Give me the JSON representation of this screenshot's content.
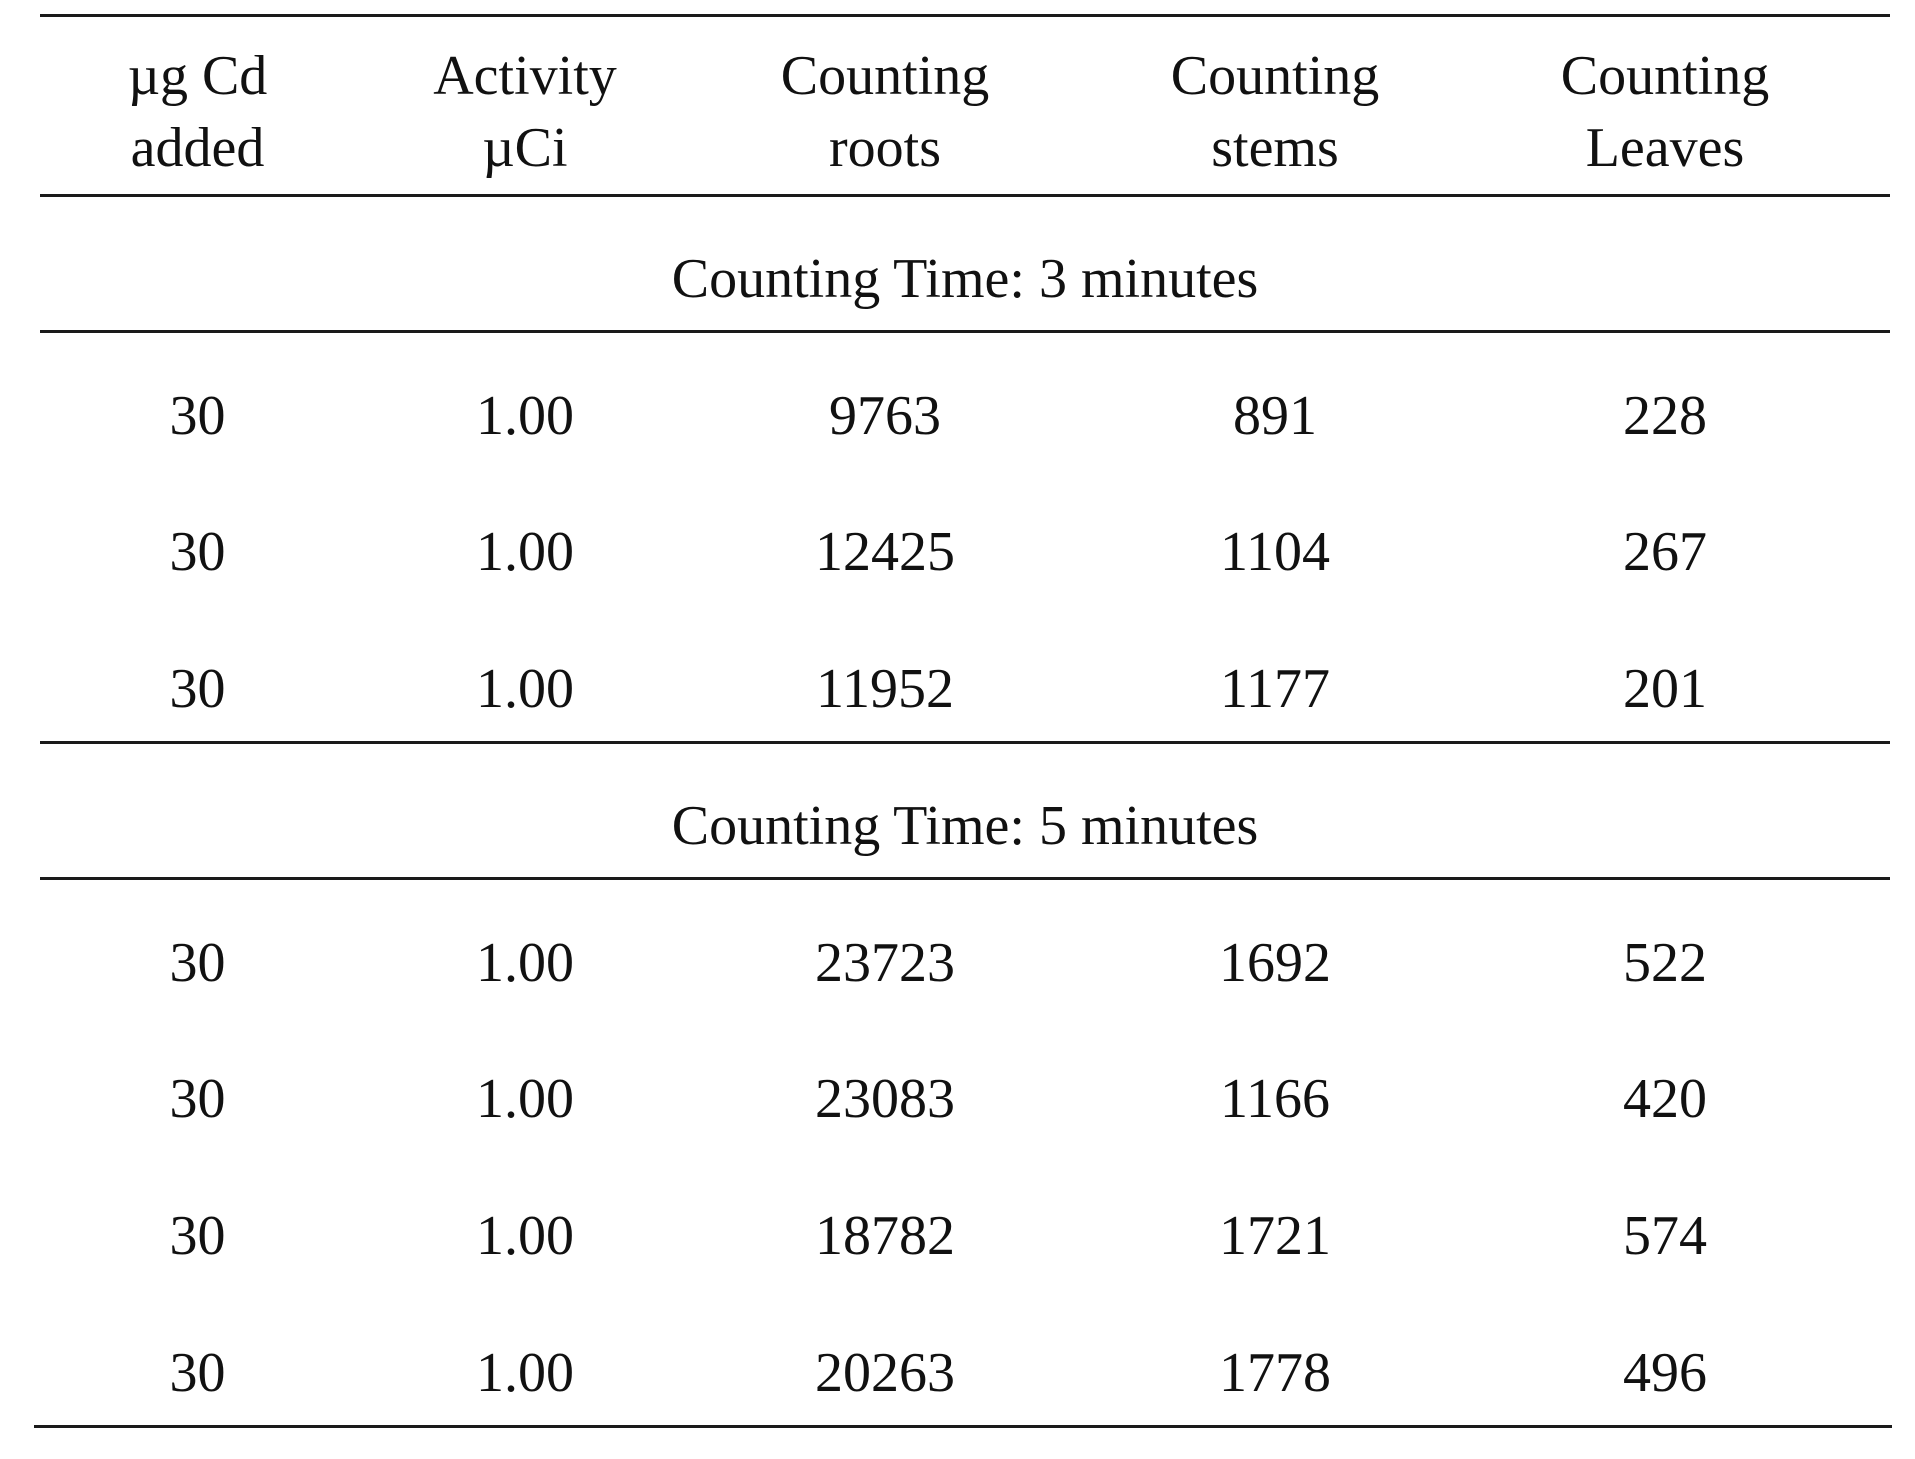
{
  "table": {
    "headers": [
      {
        "line1": "µg Cd",
        "line2": "added"
      },
      {
        "line1": "Activity",
        "line2": "µCi"
      },
      {
        "line1": "Counting",
        "line2": "roots"
      },
      {
        "line1": "Counting",
        "line2": "stems"
      },
      {
        "line1": "Counting",
        "line2": "Leaves"
      }
    ],
    "sections": [
      {
        "title": "Counting Time: 3 minutes",
        "rows": [
          [
            "30",
            "1.00",
            "9763",
            "891",
            "228"
          ],
          [
            "30",
            "1.00",
            "12425",
            "1104",
            "267"
          ],
          [
            "30",
            "1.00",
            "11952",
            "1177",
            "201"
          ]
        ]
      },
      {
        "title": "Counting Time: 5 minutes",
        "rows": [
          [
            "30",
            "1.00",
            "23723",
            "1692",
            "522"
          ],
          [
            "30",
            "1.00",
            "23083",
            "1166",
            "420"
          ],
          [
            "30",
            "1.00",
            "18782",
            "1721",
            "574"
          ],
          [
            "30",
            "1.00",
            "20263",
            "1778",
            "496"
          ]
        ]
      }
    ]
  }
}
